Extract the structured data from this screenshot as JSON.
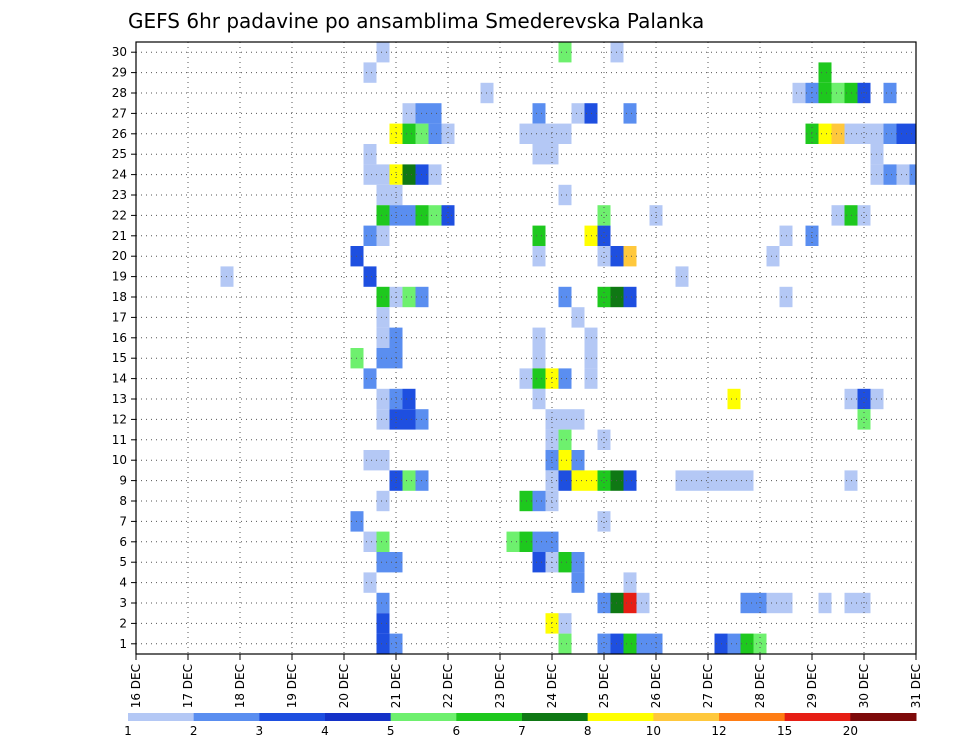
{
  "chart_data": {
    "type": "heatmap",
    "title": "GEFS 6hr padavine po ansamblima Smederevska Palanka",
    "x_tick_labels": [
      "16 DEC",
      "17 DEC",
      "18 DEC",
      "19 DEC",
      "20 DEC",
      "21 DEC",
      "22 DEC",
      "23 DEC",
      "24 DEC",
      "25 DEC",
      "26 DEC",
      "27 DEC",
      "28 DEC",
      "29 DEC",
      "30 DEC",
      "31 DEC"
    ],
    "x_range_days": [
      16,
      31
    ],
    "y_tick_labels": [
      "1",
      "2",
      "3",
      "4",
      "5",
      "6",
      "7",
      "8",
      "9",
      "10",
      "11",
      "12",
      "13",
      "14",
      "15",
      "16",
      "17",
      "18",
      "19",
      "20",
      "21",
      "22",
      "23",
      "24",
      "25",
      "26",
      "27",
      "28",
      "29",
      "30"
    ],
    "y_range": [
      0.5,
      30.5
    ],
    "grid": true,
    "legend": {
      "position": "bottom",
      "labels": [
        "1",
        "2",
        "3",
        "4",
        "5",
        "6",
        "7",
        "8",
        "10",
        "12",
        "15",
        "20"
      ],
      "colors": [
        "#b4c8f5",
        "#5a8ef0",
        "#1e4fe0",
        "#1432c8",
        "#6ef06e",
        "#1ec81e",
        "#0f7814",
        "#ffff00",
        "#ffc83c",
        "#ff7d14",
        "#e61e14",
        "#7d0a0a"
      ]
    },
    "cells": [
      {
        "m": 30,
        "d": 20.75,
        "c": 1
      },
      {
        "m": 30,
        "d": 24.25,
        "c": 5
      },
      {
        "m": 30,
        "d": 25.25,
        "c": 1
      },
      {
        "m": 29,
        "d": 20.5,
        "c": 1
      },
      {
        "m": 29,
        "d": 29.25,
        "c": 6
      },
      {
        "m": 28,
        "d": 22.75,
        "c": 1
      },
      {
        "m": 28,
        "d": 28.75,
        "c": 1
      },
      {
        "m": 28,
        "d": 29,
        "c": 2
      },
      {
        "m": 28,
        "d": 29.25,
        "c": 6
      },
      {
        "m": 28,
        "d": 29.5,
        "c": 5
      },
      {
        "m": 28,
        "d": 29.75,
        "c": 6
      },
      {
        "m": 28,
        "d": 30,
        "c": 3
      },
      {
        "m": 28,
        "d": 30.5,
        "c": 2
      },
      {
        "m": 27,
        "d": 21.25,
        "c": 1
      },
      {
        "m": 27,
        "d": 21.5,
        "c": 2
      },
      {
        "m": 27,
        "d": 21.75,
        "c": 2
      },
      {
        "m": 27,
        "d": 23.75,
        "c": 2
      },
      {
        "m": 27,
        "d": 24.5,
        "c": 1
      },
      {
        "m": 27,
        "d": 24.75,
        "c": 3
      },
      {
        "m": 27,
        "d": 25.5,
        "c": 2
      },
      {
        "m": 26,
        "d": 21.0,
        "c": 8
      },
      {
        "m": 26,
        "d": 21.25,
        "c": 6
      },
      {
        "m": 26,
        "d": 21.5,
        "c": 5
      },
      {
        "m": 26,
        "d": 21.75,
        "c": 2
      },
      {
        "m": 26,
        "d": 22,
        "c": 1
      },
      {
        "m": 26,
        "d": 23.5,
        "c": 1
      },
      {
        "m": 26,
        "d": 23.75,
        "c": 1
      },
      {
        "m": 26,
        "d": 24,
        "c": 1
      },
      {
        "m": 26,
        "d": 24.25,
        "c": 1
      },
      {
        "m": 26,
        "d": 29,
        "c": 6
      },
      {
        "m": 26,
        "d": 29.25,
        "c": 8
      },
      {
        "m": 26,
        "d": 29.5,
        "c": 10
      },
      {
        "m": 26,
        "d": 29.75,
        "c": 1
      },
      {
        "m": 26,
        "d": 30,
        "c": 1
      },
      {
        "m": 26,
        "d": 30.25,
        "c": 1
      },
      {
        "m": 26,
        "d": 30.5,
        "c": 2
      },
      {
        "m": 26,
        "d": 30.75,
        "c": 3
      },
      {
        "m": 26,
        "d": 31,
        "c": 3
      },
      {
        "m": 25,
        "d": 20.5,
        "c": 1
      },
      {
        "m": 25,
        "d": 23.75,
        "c": 1
      },
      {
        "m": 25,
        "d": 24,
        "c": 1
      },
      {
        "m": 25,
        "d": 30.25,
        "c": 1
      },
      {
        "m": 24,
        "d": 20.5,
        "c": 1
      },
      {
        "m": 24,
        "d": 20.75,
        "c": 1
      },
      {
        "m": 24,
        "d": 21,
        "c": 8
      },
      {
        "m": 24,
        "d": 21.25,
        "c": 7
      },
      {
        "m": 24,
        "d": 21.5,
        "c": 3
      },
      {
        "m": 24,
        "d": 21.75,
        "c": 1
      },
      {
        "m": 24,
        "d": 30.25,
        "c": 1
      },
      {
        "m": 24,
        "d": 30.5,
        "c": 2
      },
      {
        "m": 24,
        "d": 30.75,
        "c": 1
      },
      {
        "m": 24,
        "d": 31,
        "c": 2
      },
      {
        "m": 23,
        "d": 20.75,
        "c": 1
      },
      {
        "m": 23,
        "d": 21,
        "c": 1
      },
      {
        "m": 23,
        "d": 24.25,
        "c": 1
      },
      {
        "m": 22,
        "d": 20.75,
        "c": 6
      },
      {
        "m": 22,
        "d": 21,
        "c": 2
      },
      {
        "m": 22,
        "d": 21.25,
        "c": 2
      },
      {
        "m": 22,
        "d": 21.5,
        "c": 6
      },
      {
        "m": 22,
        "d": 21.75,
        "c": 5
      },
      {
        "m": 22,
        "d": 22,
        "c": 3
      },
      {
        "m": 22,
        "d": 25,
        "c": 5
      },
      {
        "m": 22,
        "d": 26,
        "c": 1
      },
      {
        "m": 22,
        "d": 29.5,
        "c": 1
      },
      {
        "m": 22,
        "d": 29.75,
        "c": 6
      },
      {
        "m": 22,
        "d": 30,
        "c": 1
      },
      {
        "m": 21,
        "d": 20.5,
        "c": 2
      },
      {
        "m": 21,
        "d": 20.75,
        "c": 1
      },
      {
        "m": 21,
        "d": 23.75,
        "c": 6
      },
      {
        "m": 21,
        "d": 24.75,
        "c": 9
      },
      {
        "m": 21,
        "d": 25,
        "c": 3
      },
      {
        "m": 21,
        "d": 28.5,
        "c": 1
      },
      {
        "m": 21,
        "d": 29,
        "c": 2
      },
      {
        "m": 20,
        "d": 20.25,
        "c": 3
      },
      {
        "m": 20,
        "d": 23.75,
        "c": 1
      },
      {
        "m": 20,
        "d": 25,
        "c": 1
      },
      {
        "m": 20,
        "d": 25.25,
        "c": 3
      },
      {
        "m": 20,
        "d": 25.5,
        "c": 10
      },
      {
        "m": 20,
        "d": 28.25,
        "c": 1
      },
      {
        "m": 19,
        "d": 17.75,
        "c": 1
      },
      {
        "m": 19,
        "d": 20.5,
        "c": 3
      },
      {
        "m": 19,
        "d": 26.5,
        "c": 1
      },
      {
        "m": 18,
        "d": 20.75,
        "c": 6
      },
      {
        "m": 18,
        "d": 21,
        "c": 1
      },
      {
        "m": 18,
        "d": 21.25,
        "c": 5
      },
      {
        "m": 18,
        "d": 21.5,
        "c": 2
      },
      {
        "m": 18,
        "d": 24.25,
        "c": 2
      },
      {
        "m": 18,
        "d": 25,
        "c": 6
      },
      {
        "m": 18,
        "d": 25.25,
        "c": 7
      },
      {
        "m": 18,
        "d": 25.5,
        "c": 3
      },
      {
        "m": 18,
        "d": 28.5,
        "c": 1
      },
      {
        "m": 17,
        "d": 20.75,
        "c": 1
      },
      {
        "m": 17,
        "d": 24.5,
        "c": 1
      },
      {
        "m": 16,
        "d": 20.75,
        "c": 1
      },
      {
        "m": 16,
        "d": 21,
        "c": 2
      },
      {
        "m": 16,
        "d": 23.75,
        "c": 1
      },
      {
        "m": 16,
        "d": 24.75,
        "c": 1
      },
      {
        "m": 15,
        "d": 20.25,
        "c": 5
      },
      {
        "m": 15,
        "d": 20.75,
        "c": 2
      },
      {
        "m": 15,
        "d": 21,
        "c": 2
      },
      {
        "m": 15,
        "d": 23.75,
        "c": 1
      },
      {
        "m": 15,
        "d": 24.75,
        "c": 1
      },
      {
        "m": 14,
        "d": 20.5,
        "c": 2
      },
      {
        "m": 14,
        "d": 23.5,
        "c": 1
      },
      {
        "m": 14,
        "d": 23.75,
        "c": 6
      },
      {
        "m": 14,
        "d": 24,
        "c": 9
      },
      {
        "m": 14,
        "d": 24.25,
        "c": 2
      },
      {
        "m": 14,
        "d": 24.75,
        "c": 1
      },
      {
        "m": 13,
        "d": 20.75,
        "c": 1
      },
      {
        "m": 13,
        "d": 21,
        "c": 2
      },
      {
        "m": 13,
        "d": 21.25,
        "c": 3
      },
      {
        "m": 13,
        "d": 23.75,
        "c": 1
      },
      {
        "m": 13,
        "d": 27.5,
        "c": 8
      },
      {
        "m": 13,
        "d": 29.75,
        "c": 1
      },
      {
        "m": 13,
        "d": 30,
        "c": 3
      },
      {
        "m": 13,
        "d": 30.25,
        "c": 1
      },
      {
        "m": 12,
        "d": 20.75,
        "c": 1
      },
      {
        "m": 12,
        "d": 21,
        "c": 3
      },
      {
        "m": 12,
        "d": 21.25,
        "c": 3
      },
      {
        "m": 12,
        "d": 21.5,
        "c": 2
      },
      {
        "m": 12,
        "d": 24,
        "c": 1
      },
      {
        "m": 12,
        "d": 24.25,
        "c": 1
      },
      {
        "m": 12,
        "d": 24.5,
        "c": 1
      },
      {
        "m": 12,
        "d": 30,
        "c": 5
      },
      {
        "m": 11,
        "d": 24,
        "c": 1
      },
      {
        "m": 11,
        "d": 24.25,
        "c": 5
      },
      {
        "m": 11,
        "d": 25,
        "c": 1
      },
      {
        "m": 10,
        "d": 20.5,
        "c": 1
      },
      {
        "m": 10,
        "d": 20.75,
        "c": 1
      },
      {
        "m": 10,
        "d": 24,
        "c": 2
      },
      {
        "m": 10,
        "d": 24.25,
        "c": 8
      },
      {
        "m": 10,
        "d": 24.5,
        "c": 2
      },
      {
        "m": 9,
        "d": 21,
        "c": 3
      },
      {
        "m": 9,
        "d": 21.25,
        "c": 5
      },
      {
        "m": 9,
        "d": 21.5,
        "c": 2
      },
      {
        "m": 9,
        "d": 24,
        "c": 1
      },
      {
        "m": 9,
        "d": 24.25,
        "c": 3
      },
      {
        "m": 9,
        "d": 24.5,
        "c": 9
      },
      {
        "m": 9,
        "d": 24.75,
        "c": 8
      },
      {
        "m": 9,
        "d": 25,
        "c": 6
      },
      {
        "m": 9,
        "d": 25.25,
        "c": 7
      },
      {
        "m": 9,
        "d": 25.5,
        "c": 3
      },
      {
        "m": 9,
        "d": 26.5,
        "c": 1
      },
      {
        "m": 9,
        "d": 26.75,
        "c": 1
      },
      {
        "m": 9,
        "d": 27,
        "c": 1
      },
      {
        "m": 9,
        "d": 27.25,
        "c": 1
      },
      {
        "m": 9,
        "d": 27.5,
        "c": 1
      },
      {
        "m": 9,
        "d": 27.75,
        "c": 1
      },
      {
        "m": 9,
        "d": 29.75,
        "c": 1
      },
      {
        "m": 8,
        "d": 20.75,
        "c": 1
      },
      {
        "m": 8,
        "d": 23.5,
        "c": 6
      },
      {
        "m": 8,
        "d": 23.75,
        "c": 2
      },
      {
        "m": 8,
        "d": 24,
        "c": 1
      },
      {
        "m": 7,
        "d": 20.25,
        "c": 2
      },
      {
        "m": 7,
        "d": 25,
        "c": 1
      },
      {
        "m": 6,
        "d": 20.5,
        "c": 1
      },
      {
        "m": 6,
        "d": 20.75,
        "c": 5
      },
      {
        "m": 6,
        "d": 23.25,
        "c": 5
      },
      {
        "m": 6,
        "d": 23.5,
        "c": 6
      },
      {
        "m": 6,
        "d": 23.75,
        "c": 2
      },
      {
        "m": 6,
        "d": 24,
        "c": 2
      },
      {
        "m": 5,
        "d": 20.75,
        "c": 2
      },
      {
        "m": 5,
        "d": 21,
        "c": 2
      },
      {
        "m": 5,
        "d": 23.75,
        "c": 3
      },
      {
        "m": 5,
        "d": 24,
        "c": 1
      },
      {
        "m": 5,
        "d": 24.25,
        "c": 6
      },
      {
        "m": 5,
        "d": 24.5,
        "c": 2
      },
      {
        "m": 4,
        "d": 20.5,
        "c": 1
      },
      {
        "m": 4,
        "d": 24.5,
        "c": 2
      },
      {
        "m": 4,
        "d": 25.5,
        "c": 1
      },
      {
        "m": 3,
        "d": 20.75,
        "c": 2
      },
      {
        "m": 3,
        "d": 25,
        "c": 2
      },
      {
        "m": 3,
        "d": 25.25,
        "c": 7
      },
      {
        "m": 3,
        "d": 25.5,
        "c": 15
      },
      {
        "m": 3,
        "d": 25.75,
        "c": 1
      },
      {
        "m": 3,
        "d": 27.75,
        "c": 2
      },
      {
        "m": 3,
        "d": 28,
        "c": 2
      },
      {
        "m": 3,
        "d": 28.25,
        "c": 1
      },
      {
        "m": 3,
        "d": 28.5,
        "c": 1
      },
      {
        "m": 3,
        "d": 29.25,
        "c": 1
      },
      {
        "m": 3,
        "d": 29.75,
        "c": 1
      },
      {
        "m": 3,
        "d": 30,
        "c": 1
      },
      {
        "m": 2,
        "d": 20.75,
        "c": 3
      },
      {
        "m": 2,
        "d": 24,
        "c": 9
      },
      {
        "m": 2,
        "d": 24.25,
        "c": 1
      },
      {
        "m": 1,
        "d": 20.75,
        "c": 3
      },
      {
        "m": 1,
        "d": 21,
        "c": 2
      },
      {
        "m": 1,
        "d": 24.25,
        "c": 5
      },
      {
        "m": 1,
        "d": 25,
        "c": 2
      },
      {
        "m": 1,
        "d": 25.25,
        "c": 3
      },
      {
        "m": 1,
        "d": 25.5,
        "c": 6
      },
      {
        "m": 1,
        "d": 25.75,
        "c": 2
      },
      {
        "m": 1,
        "d": 26,
        "c": 2
      },
      {
        "m": 1,
        "d": 27.25,
        "c": 3
      },
      {
        "m": 1,
        "d": 27.5,
        "c": 2
      },
      {
        "m": 1,
        "d": 27.75,
        "c": 6
      },
      {
        "m": 1,
        "d": 28,
        "c": 5
      }
    ]
  }
}
